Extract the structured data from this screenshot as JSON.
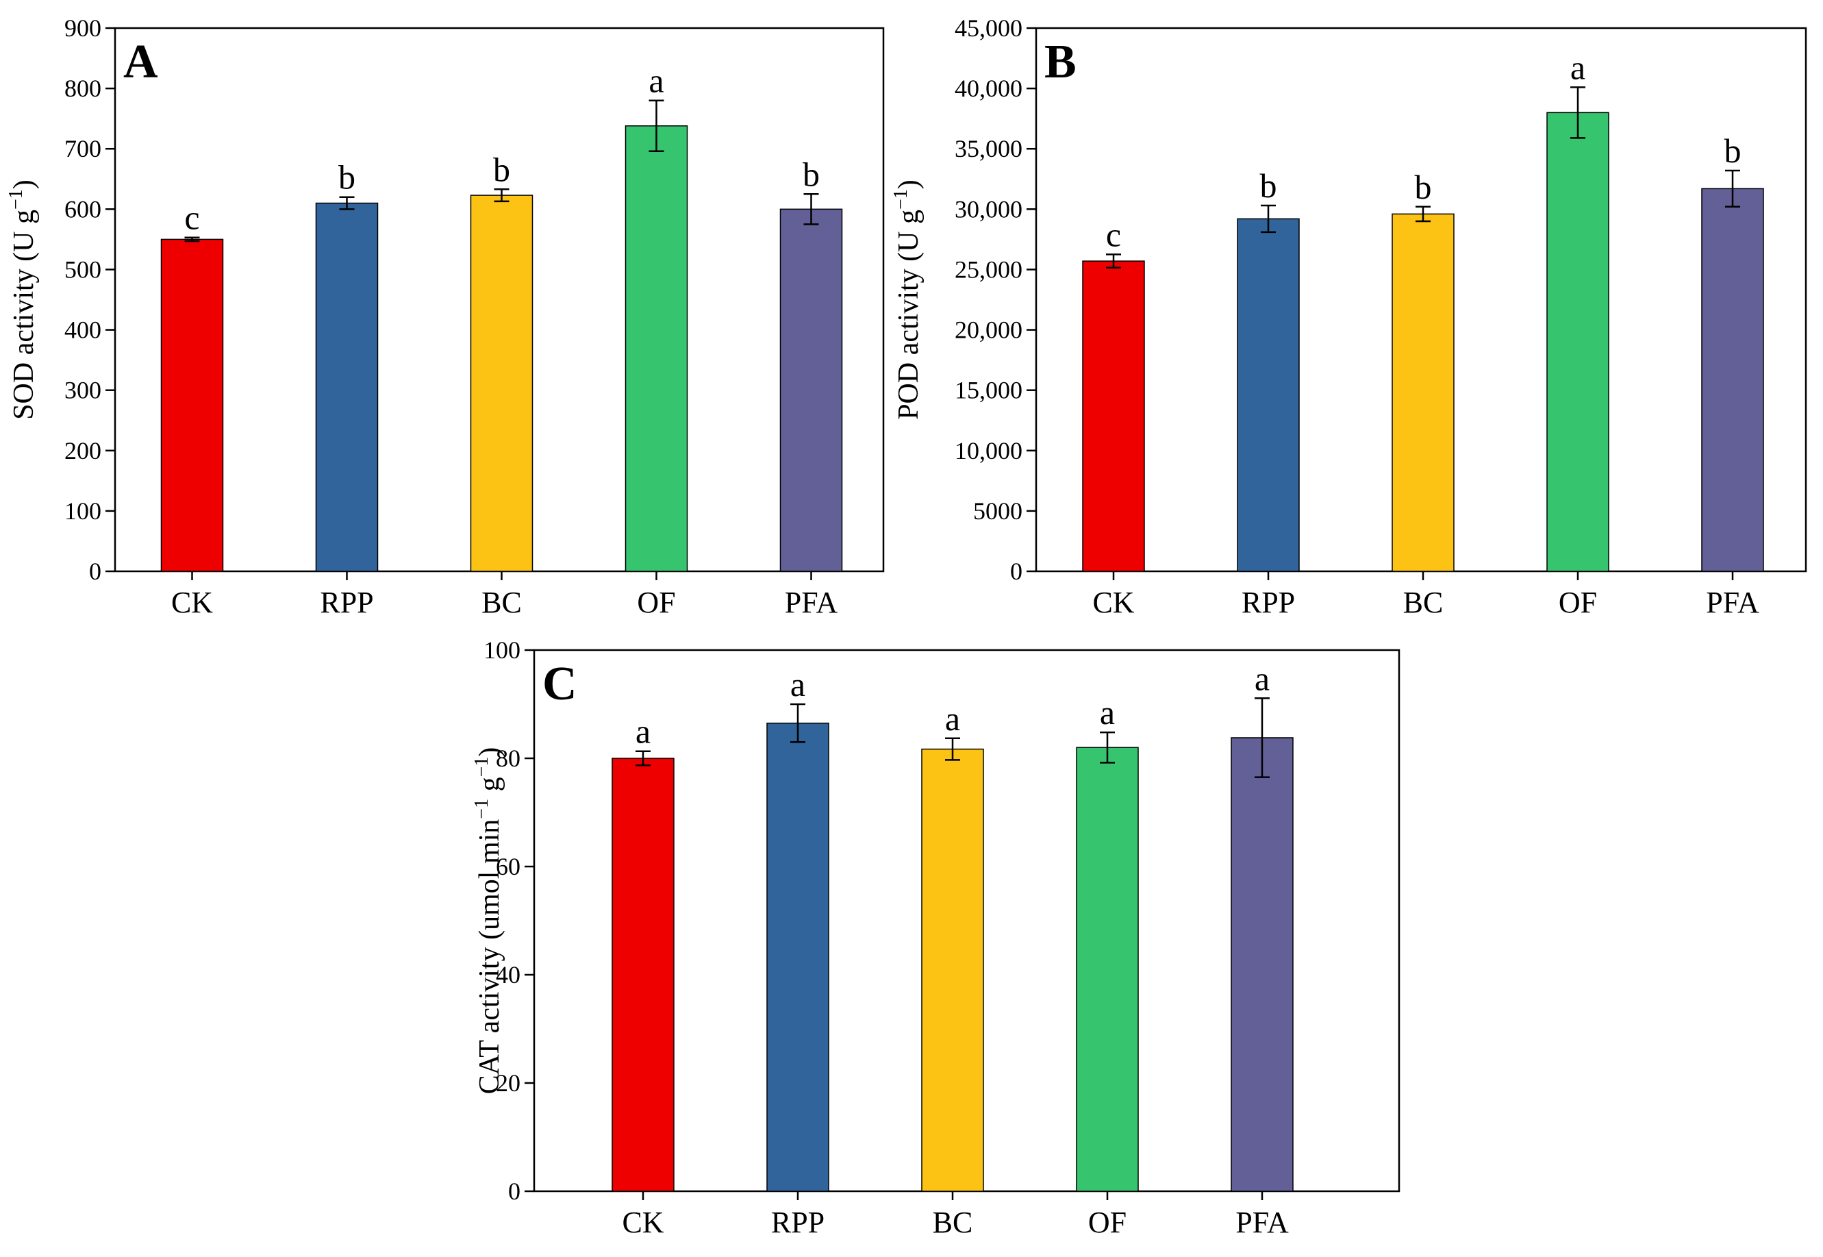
{
  "chart_data": [
    {
      "type": "bar",
      "panel": "A",
      "categories": [
        "CK",
        "RPP",
        "BC",
        "OF",
        "PFA"
      ],
      "values": [
        550,
        610,
        623,
        738,
        600
      ],
      "errors": [
        3,
        10,
        10,
        42,
        25
      ],
      "significance": [
        "c",
        "b",
        "b",
        "a",
        "b"
      ],
      "ylabel": {
        "main": "SOD activity (U g",
        "sup": "−1",
        "end": ")"
      },
      "ylim": [
        0,
        900
      ],
      "yticks": [
        0,
        100,
        200,
        300,
        400,
        500,
        600,
        700,
        800,
        900
      ],
      "ytick_labels": [
        "0",
        "100",
        "200",
        "300",
        "400",
        "500",
        "600",
        "700",
        "800",
        "900"
      ]
    },
    {
      "type": "bar",
      "panel": "B",
      "categories": [
        "CK",
        "RPP",
        "BC",
        "OF",
        "PFA"
      ],
      "values": [
        25700,
        29200,
        29600,
        38000,
        31700
      ],
      "errors": [
        550,
        1100,
        600,
        2100,
        1500
      ],
      "significance": [
        "c",
        "b",
        "b",
        "a",
        "b"
      ],
      "ylabel": {
        "main": "POD activity (U g",
        "sup": "−1",
        "end": ")"
      },
      "ylim": [
        0,
        45000
      ],
      "yticks": [
        0,
        5000,
        10000,
        15000,
        20000,
        25000,
        30000,
        35000,
        40000,
        45000
      ],
      "ytick_labels": [
        "0",
        "5000",
        "10,000",
        "15,000",
        "20,000",
        "25,000",
        "30,000",
        "35,000",
        "40,000",
        "45,000"
      ]
    },
    {
      "type": "bar",
      "panel": "C",
      "categories": [
        "CK",
        "RPP",
        "BC",
        "OF",
        "PFA"
      ],
      "values": [
        80,
        86.5,
        81.7,
        82,
        83.8
      ],
      "errors": [
        1.3,
        3.5,
        2,
        2.8,
        7.3
      ],
      "significance": [
        "a",
        "a",
        "a",
        "a",
        "a"
      ],
      "ylabel": {
        "main": "CAT activity (umol min",
        "sup": "−1",
        "mid": " g",
        "sup2": "−1",
        "end": ")"
      },
      "ylim": [
        0,
        100
      ],
      "yticks": [
        0,
        20,
        40,
        60,
        80,
        100
      ],
      "ytick_labels": [
        "0",
        "20",
        "40",
        "60",
        "80",
        "100"
      ]
    }
  ],
  "colors": {
    "CK": "#ee0000",
    "RPP": "#30649b",
    "BC": "#fcc314",
    "OF": "#36c56e",
    "PFA": "#626096"
  }
}
